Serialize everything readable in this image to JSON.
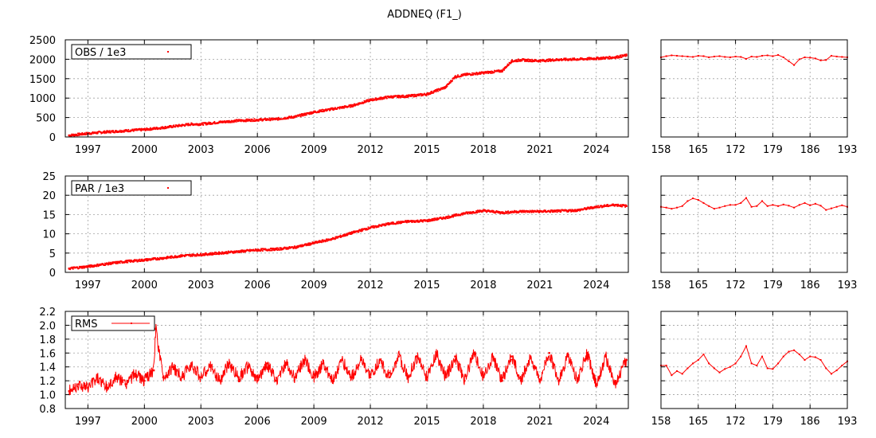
{
  "figure": {
    "title": "ADDNEQ (F1_)"
  },
  "colors": {
    "series": "#ff0000",
    "grid": "#a0a0a0",
    "axis": "#000000"
  },
  "chart_data": [
    {
      "type": "scatter",
      "panel": "long-term",
      "legend": "OBS / 1e3",
      "legend_placement": "top-left",
      "grid": true,
      "xlim": [
        1995.8,
        2025.7
      ],
      "ylim": [
        0,
        2500
      ],
      "x_ticks": [
        1997,
        2000,
        2003,
        2006,
        2009,
        2012,
        2015,
        2018,
        2021,
        2024
      ],
      "y_ticks": [
        0,
        500,
        1000,
        1500,
        2000,
        2500
      ],
      "series": [
        {
          "name": "OBS / 1e3",
          "x": [
            1996.0,
            1997.0,
            1998.0,
            1999.0,
            2000.0,
            2001.0,
            2002.0,
            2002.5,
            2003.0,
            2004.0,
            2005.0,
            2006.0,
            2007.0,
            2008.0,
            2009.0,
            2010.0,
            2011.0,
            2012.0,
            2013.0,
            2014.0,
            2015.0,
            2016.0,
            2016.5,
            2017.0,
            2018.0,
            2019.0,
            2019.5,
            2020.0,
            2021.0,
            2022.0,
            2023.0,
            2024.0,
            2025.0,
            2025.6
          ],
          "y": [
            40,
            90,
            130,
            160,
            190,
            240,
            300,
            330,
            330,
            380,
            420,
            440,
            460,
            520,
            640,
            720,
            800,
            950,
            1030,
            1050,
            1100,
            1280,
            1550,
            1600,
            1650,
            1700,
            1950,
            1980,
            1960,
            1990,
            2000,
            2020,
            2050,
            2100
          ]
        }
      ]
    },
    {
      "type": "line",
      "panel": "recent-days",
      "grid": true,
      "xlim": [
        158,
        193
      ],
      "ylim": [
        0,
        2500
      ],
      "x_ticks": [
        158,
        165,
        172,
        179,
        186,
        193
      ],
      "series": [
        {
          "x": [
            158,
            159,
            160,
            161,
            162,
            163,
            164,
            165,
            166,
            167,
            168,
            169,
            170,
            171,
            172,
            173,
            174,
            175,
            176,
            177,
            178,
            179,
            180,
            181,
            182,
            183,
            184,
            185,
            186,
            187,
            188,
            189,
            190,
            191,
            192,
            193
          ],
          "y": [
            2050,
            2080,
            2100,
            2090,
            2080,
            2070,
            2060,
            2090,
            2080,
            2050,
            2070,
            2080,
            2060,
            2050,
            2070,
            2060,
            2010,
            2070,
            2060,
            2090,
            2100,
            2080,
            2110,
            2050,
            1950,
            1850,
            2000,
            2050,
            2040,
            2020,
            1970,
            1980,
            2090,
            2070,
            2060,
            2050
          ]
        }
      ]
    },
    {
      "type": "scatter",
      "panel": "long-term",
      "legend": "PAR / 1e3",
      "legend_placement": "top-left",
      "grid": true,
      "xlim": [
        1995.8,
        2025.7
      ],
      "ylim": [
        0,
        25
      ],
      "x_ticks": [
        1997,
        2000,
        2003,
        2006,
        2009,
        2012,
        2015,
        2018,
        2021,
        2024
      ],
      "y_ticks": [
        0,
        5,
        10,
        15,
        20,
        25
      ],
      "series": [
        {
          "name": "PAR / 1e3",
          "x": [
            1996.0,
            1997.0,
            1998.0,
            1999.0,
            2000.0,
            2001.0,
            2002.0,
            2003.0,
            2004.0,
            2005.0,
            2006.0,
            2007.0,
            2008.0,
            2009.0,
            2010.0,
            2011.0,
            2012.0,
            2013.0,
            2014.0,
            2015.0,
            2016.0,
            2017.0,
            2018.0,
            2019.0,
            2020.0,
            2021.0,
            2022.0,
            2023.0,
            2024.0,
            2025.0,
            2025.6
          ],
          "y": [
            1.0,
            1.5,
            2.2,
            2.8,
            3.2,
            3.7,
            4.3,
            4.6,
            5.0,
            5.4,
            5.8,
            6.0,
            6.5,
            7.6,
            8.7,
            10.2,
            11.6,
            12.6,
            13.2,
            13.4,
            14.2,
            15.3,
            16.0,
            15.5,
            15.8,
            15.8,
            15.9,
            16.1,
            17.0,
            17.5,
            17.2
          ]
        }
      ]
    },
    {
      "type": "line",
      "panel": "recent-days",
      "grid": true,
      "xlim": [
        158,
        193
      ],
      "ylim": [
        0,
        25
      ],
      "x_ticks": [
        158,
        165,
        172,
        179,
        186,
        193
      ],
      "series": [
        {
          "x": [
            158,
            159,
            160,
            161,
            162,
            163,
            164,
            165,
            166,
            167,
            168,
            169,
            170,
            171,
            172,
            173,
            174,
            175,
            176,
            177,
            178,
            179,
            180,
            181,
            182,
            183,
            184,
            185,
            186,
            187,
            188,
            189,
            190,
            191,
            192,
            193
          ],
          "y": [
            17.0,
            16.8,
            16.5,
            16.8,
            17.2,
            18.5,
            19.2,
            18.8,
            18.0,
            17.2,
            16.5,
            16.8,
            17.2,
            17.5,
            17.5,
            18.0,
            19.3,
            17.0,
            17.2,
            18.5,
            17.2,
            17.5,
            17.2,
            17.6,
            17.3,
            16.8,
            17.5,
            18.0,
            17.4,
            17.8,
            17.3,
            16.2,
            16.6,
            17.0,
            17.4,
            17.0
          ]
        }
      ]
    },
    {
      "type": "line",
      "panel": "long-term",
      "legend": "RMS",
      "legend_placement": "top-left",
      "grid": true,
      "xlim": [
        1995.8,
        2025.7
      ],
      "ylim": [
        0.8,
        2.2
      ],
      "x_ticks": [
        1997,
        2000,
        2003,
        2006,
        2009,
        2012,
        2015,
        2018,
        2021,
        2024
      ],
      "y_ticks": [
        0.8,
        1.0,
        1.2,
        1.4,
        1.6,
        1.8,
        2.0,
        2.2
      ],
      "series": [
        {
          "name": "RMS",
          "x": [
            1996.0,
            1996.5,
            1997.0,
            1997.5,
            1998.0,
            1998.5,
            1999.0,
            1999.5,
            2000.0,
            2000.5,
            2000.6,
            2001.0,
            2001.5,
            2002.0,
            2002.5,
            2003.0,
            2003.5,
            2004.0,
            2004.5,
            2005.0,
            2005.5,
            2006.0,
            2006.5,
            2007.0,
            2007.5,
            2008.0,
            2008.5,
            2009.0,
            2009.5,
            2010.0,
            2010.5,
            2011.0,
            2011.5,
            2012.0,
            2012.5,
            2013.0,
            2013.5,
            2014.0,
            2014.5,
            2015.0,
            2015.5,
            2016.0,
            2016.5,
            2017.0,
            2017.5,
            2018.0,
            2018.5,
            2019.0,
            2019.5,
            2020.0,
            2020.5,
            2021.0,
            2021.5,
            2022.0,
            2022.5,
            2023.0,
            2023.5,
            2024.0,
            2024.5,
            2025.0,
            2025.6
          ],
          "y": [
            1.05,
            1.15,
            1.1,
            1.25,
            1.1,
            1.25,
            1.15,
            1.3,
            1.2,
            1.35,
            1.95,
            1.25,
            1.4,
            1.25,
            1.45,
            1.25,
            1.4,
            1.2,
            1.45,
            1.25,
            1.4,
            1.2,
            1.45,
            1.2,
            1.45,
            1.25,
            1.5,
            1.25,
            1.45,
            1.2,
            1.5,
            1.25,
            1.5,
            1.25,
            1.5,
            1.25,
            1.55,
            1.25,
            1.55,
            1.25,
            1.6,
            1.25,
            1.55,
            1.2,
            1.6,
            1.25,
            1.55,
            1.2,
            1.55,
            1.2,
            1.55,
            1.2,
            1.6,
            1.2,
            1.55,
            1.2,
            1.6,
            1.15,
            1.55,
            1.15,
            1.5
          ]
        }
      ]
    },
    {
      "type": "line",
      "panel": "recent-days",
      "grid": true,
      "xlim": [
        158,
        193
      ],
      "ylim": [
        0.8,
        2.2
      ],
      "x_ticks": [
        158,
        165,
        172,
        179,
        186,
        193
      ],
      "series": [
        {
          "x": [
            158,
            159,
            160,
            161,
            162,
            163,
            164,
            165,
            166,
            167,
            168,
            169,
            170,
            171,
            172,
            173,
            174,
            175,
            176,
            177,
            178,
            179,
            180,
            181,
            182,
            183,
            184,
            185,
            186,
            187,
            188,
            189,
            190,
            191,
            192,
            193
          ],
          "y": [
            1.42,
            1.42,
            1.28,
            1.34,
            1.3,
            1.38,
            1.45,
            1.5,
            1.58,
            1.45,
            1.38,
            1.32,
            1.37,
            1.4,
            1.45,
            1.55,
            1.7,
            1.45,
            1.42,
            1.55,
            1.38,
            1.37,
            1.45,
            1.55,
            1.62,
            1.64,
            1.58,
            1.5,
            1.55,
            1.54,
            1.5,
            1.38,
            1.3,
            1.35,
            1.42,
            1.48
          ]
        }
      ]
    }
  ]
}
